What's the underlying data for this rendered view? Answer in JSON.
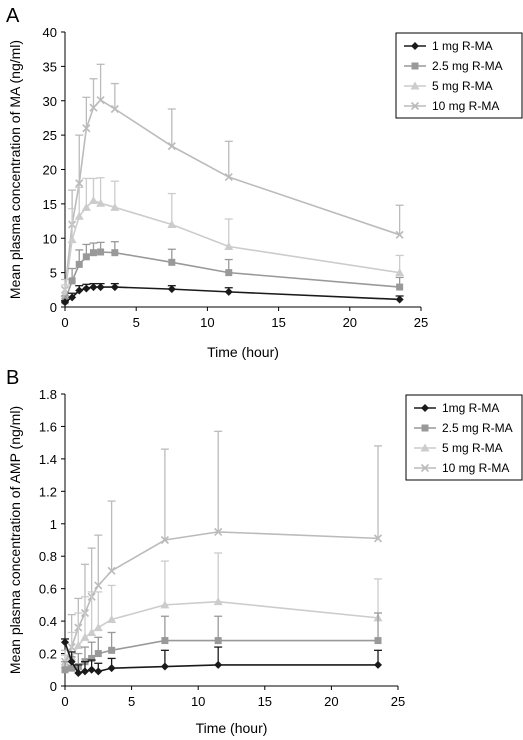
{
  "chart_data": [
    {
      "type": "line",
      "panel_label": "A",
      "xlabel": "Time (hour)",
      "ylabel": "Mean plasma concentration of MA (ng/ml)",
      "xlim": [
        0,
        25
      ],
      "ylim": [
        0,
        40
      ],
      "xticks": [
        0,
        5,
        10,
        15,
        20,
        25
      ],
      "yticks": [
        0,
        5,
        10,
        15,
        20,
        25,
        30,
        35,
        40
      ],
      "grid": false,
      "legend_position": "top-right",
      "x": [
        0,
        0.5,
        1,
        1.5,
        2,
        2.5,
        3.5,
        7.5,
        11.5,
        23.5
      ],
      "series": [
        {
          "name": "1 mg R-MA",
          "color": "#1a1a1a",
          "marker": "diamond",
          "values": [
            0.7,
            1.4,
            2.4,
            2.7,
            2.9,
            2.9,
            2.9,
            2.6,
            2.2,
            1.1
          ],
          "error": [
            0.2,
            0.6,
            0.7,
            0.6,
            0.5,
            0.5,
            0.5,
            0.5,
            0.6,
            0.5
          ]
        },
        {
          "name": "2.5 mg R-MA",
          "color": "#999999",
          "marker": "square",
          "values": [
            0.9,
            3.8,
            6.2,
            7.3,
            7.9,
            8.0,
            7.9,
            6.5,
            5.0,
            2.9
          ],
          "error": [
            0.7,
            1.8,
            2.1,
            1.8,
            1.4,
            1.4,
            1.6,
            1.9,
            1.9,
            1.4
          ]
        },
        {
          "name": "5 mg R-MA",
          "color": "#cccccc",
          "marker": "triangle",
          "values": [
            2.0,
            9.8,
            13.2,
            14.5,
            15.5,
            15.1,
            14.5,
            12.0,
            8.8,
            5.0
          ],
          "error": [
            1.2,
            4.5,
            4.2,
            4.2,
            3.2,
            3.7,
            3.8,
            4.5,
            4.0,
            2.5
          ]
        },
        {
          "name": "10 mg R-MA",
          "color": "#bbbbbb",
          "marker": "x",
          "values": [
            2.5,
            12.0,
            18.0,
            26.0,
            29.0,
            30.1,
            28.8,
            23.4,
            18.9,
            10.5
          ],
          "error": [
            1.5,
            5.0,
            7.0,
            4.5,
            4.2,
            5.2,
            3.7,
            5.4,
            5.2,
            4.3
          ]
        }
      ]
    },
    {
      "type": "line",
      "panel_label": "B",
      "xlabel": "Time (hour)",
      "ylabel": "Mean plasma concentration of AMP (ng/ml)",
      "xlim": [
        0,
        25
      ],
      "ylim": [
        0,
        1.8
      ],
      "xticks": [
        0,
        5,
        10,
        15,
        20,
        25
      ],
      "yticks": [
        "0",
        "0.2",
        "0.4",
        "0.6",
        "0.8",
        "1",
        "1.2",
        "1.4",
        "1.6",
        "1.8"
      ],
      "grid": false,
      "legend_position": "top-right",
      "x": [
        0,
        0.5,
        1,
        1.5,
        2,
        2.5,
        3.5,
        7.5,
        11.5,
        23.5
      ],
      "series": [
        {
          "name": "1mg R-MA",
          "color": "#1a1a1a",
          "marker": "diamond",
          "values": [
            0.27,
            0.15,
            0.08,
            0.09,
            0.1,
            0.09,
            0.11,
            0.12,
            0.13,
            0.13
          ],
          "error": [
            0.02,
            0.06,
            0.05,
            0.06,
            0.06,
            0.05,
            0.06,
            0.1,
            0.11,
            0.09
          ]
        },
        {
          "name": "2.5 mg R-MA",
          "color": "#999999",
          "marker": "square",
          "values": [
            0.1,
            0.11,
            0.12,
            0.15,
            0.17,
            0.2,
            0.22,
            0.28,
            0.28,
            0.28
          ],
          "error": [
            0.05,
            0.07,
            0.08,
            0.09,
            0.1,
            0.1,
            0.11,
            0.15,
            0.15,
            0.17
          ]
        },
        {
          "name": "5 mg R-MA",
          "color": "#cccccc",
          "marker": "triangle",
          "values": [
            0.13,
            0.18,
            0.25,
            0.3,
            0.33,
            0.36,
            0.41,
            0.5,
            0.52,
            0.42
          ],
          "error": [
            0.06,
            0.15,
            0.2,
            0.25,
            0.25,
            0.22,
            0.21,
            0.27,
            0.3,
            0.24
          ]
        },
        {
          "name": "10 mg R-MA",
          "color": "#bbbbbb",
          "marker": "x",
          "values": [
            0.15,
            0.24,
            0.36,
            0.45,
            0.55,
            0.62,
            0.71,
            0.9,
            0.95,
            0.91
          ],
          "error": [
            0.07,
            0.2,
            0.18,
            0.3,
            0.3,
            0.31,
            0.43,
            0.56,
            0.62,
            0.57
          ]
        }
      ]
    }
  ]
}
